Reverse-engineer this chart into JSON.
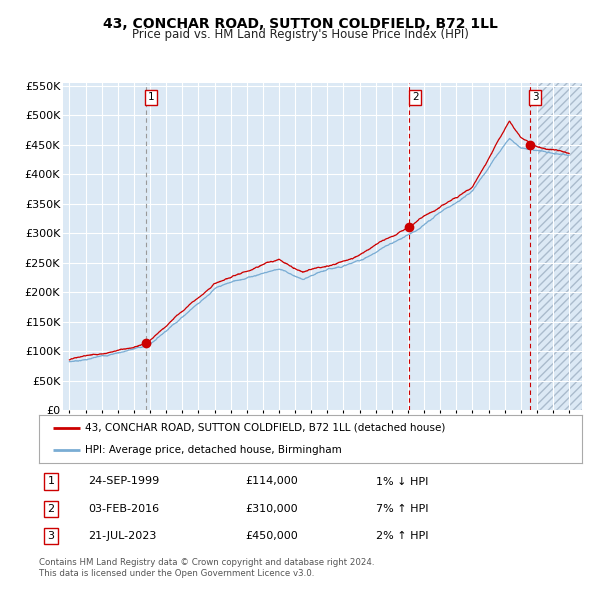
{
  "title": "43, CONCHAR ROAD, SUTTON COLDFIELD, B72 1LL",
  "subtitle": "Price paid vs. HM Land Registry's House Price Index (HPI)",
  "y_ticks": [
    0,
    50000,
    100000,
    150000,
    200000,
    250000,
    300000,
    350000,
    400000,
    450000,
    500000,
    550000
  ],
  "y_tick_labels": [
    "£0",
    "£50K",
    "£100K",
    "£150K",
    "£200K",
    "£250K",
    "£300K",
    "£350K",
    "£400K",
    "£450K",
    "£500K",
    "£550K"
  ],
  "bg_color": "#dce9f5",
  "hatch_color": "#aabbcc",
  "sale_line_color": "#cc0000",
  "hpi_line_color": "#7aadd4",
  "sale_dates": [
    1999.73,
    2016.09,
    2023.55
  ],
  "sale_prices": [
    114000,
    310000,
    450000
  ],
  "sale_labels": [
    "1",
    "2",
    "3"
  ],
  "legend_entries": [
    "43, CONCHAR ROAD, SUTTON COLDFIELD, B72 1LL (detached house)",
    "HPI: Average price, detached house, Birmingham"
  ],
  "table_rows": [
    {
      "num": "1",
      "date": "24-SEP-1999",
      "price": "£114,000",
      "pct": "1% ↓ HPI"
    },
    {
      "num": "2",
      "date": "03-FEB-2016",
      "price": "£310,000",
      "pct": "7% ↑ HPI"
    },
    {
      "num": "3",
      "date": "21-JUL-2023",
      "price": "£450,000",
      "pct": "2% ↑ HPI"
    }
  ],
  "footer1": "Contains HM Land Registry data © Crown copyright and database right 2024.",
  "footer2": "This data is licensed under the Open Government Licence v3.0."
}
